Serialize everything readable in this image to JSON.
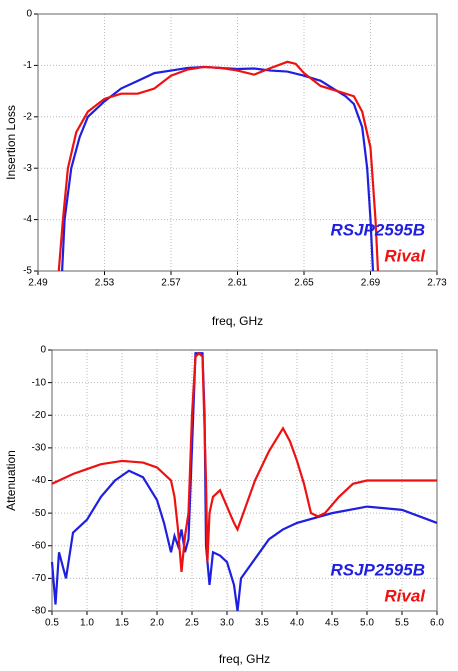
{
  "chart_data": [
    {
      "type": "line",
      "xlabel": "freq, GHz",
      "ylabel": "Insertion Loss",
      "xlim": [
        2.49,
        2.73
      ],
      "xticks": [
        2.49,
        2.53,
        2.57,
        2.61,
        2.65,
        2.69,
        2.73
      ],
      "ylim": [
        -5,
        0
      ],
      "yticks": [
        -5,
        -4,
        -3,
        -2,
        -1,
        0
      ],
      "grid": true,
      "legend": "lower right",
      "series": [
        {
          "name": "RSJP2595B",
          "color": "#1f1fe0",
          "x": [
            2.5045,
            2.506,
            2.51,
            2.515,
            2.52,
            2.53,
            2.54,
            2.55,
            2.56,
            2.57,
            2.58,
            2.59,
            2.6,
            2.61,
            2.62,
            2.63,
            2.64,
            2.65,
            2.66,
            2.67,
            2.675,
            2.68,
            2.685,
            2.688,
            2.69,
            2.6915
          ],
          "values": [
            -5,
            -4,
            -3,
            -2.4,
            -2.0,
            -1.7,
            -1.45,
            -1.3,
            -1.15,
            -1.1,
            -1.05,
            -1.03,
            -1.05,
            -1.07,
            -1.06,
            -1.1,
            -1.12,
            -1.2,
            -1.3,
            -1.5,
            -1.6,
            -1.75,
            -2.2,
            -3,
            -4,
            -5
          ]
        },
        {
          "name": "Rival",
          "color": "#ee1111",
          "x": [
            2.5025,
            2.505,
            2.508,
            2.513,
            2.52,
            2.53,
            2.54,
            2.55,
            2.56,
            2.57,
            2.58,
            2.59,
            2.6,
            2.61,
            2.62,
            2.63,
            2.64,
            2.645,
            2.65,
            2.66,
            2.67,
            2.68,
            2.685,
            2.69,
            2.693,
            2.6945
          ],
          "values": [
            -5,
            -4,
            -3,
            -2.3,
            -1.9,
            -1.65,
            -1.55,
            -1.55,
            -1.45,
            -1.2,
            -1.08,
            -1.03,
            -1.05,
            -1.1,
            -1.18,
            -1.05,
            -0.93,
            -0.97,
            -1.15,
            -1.4,
            -1.5,
            -1.6,
            -1.9,
            -2.6,
            -4,
            -5
          ]
        }
      ]
    },
    {
      "type": "line",
      "xlabel": "freq, GHz",
      "ylabel": "Attenuation",
      "xlim": [
        0.5,
        6.0
      ],
      "xticks": [
        0.5,
        {
          "value": 1,
          "label": "1.0"
        },
        1.5,
        {
          "value": 2,
          "label": "2.0"
        },
        2.5,
        {
          "value": 3,
          "label": "3.0"
        },
        3.5,
        {
          "value": 4,
          "label": "4.0"
        },
        4.5,
        {
          "value": 5,
          "label": "5.0"
        },
        5.5,
        {
          "value": 6,
          "label": "6.0"
        }
      ],
      "ylim": [
        -80,
        0
      ],
      "yticks": [
        -80,
        -70,
        -60,
        -50,
        -40,
        -30,
        -20,
        -10,
        0
      ],
      "grid": true,
      "legend": "lower right",
      "series": [
        {
          "name": "RSJP2595B",
          "color": "#1f1fe0",
          "x": [
            0.5,
            0.55,
            0.6,
            0.7,
            0.8,
            1.0,
            1.2,
            1.4,
            1.6,
            1.8,
            2.0,
            2.1,
            2.2,
            2.25,
            2.3,
            2.35,
            2.4,
            2.45,
            2.5,
            2.55,
            2.65,
            2.68,
            2.7,
            2.75,
            2.8,
            2.9,
            3.0,
            3.1,
            3.15,
            3.2,
            3.4,
            3.6,
            3.8,
            4.0,
            4.5,
            5.0,
            5.5,
            6.0
          ],
          "values": [
            -65,
            -78,
            -62,
            -70,
            -56,
            -52,
            -45,
            -40,
            -37,
            -39,
            -46,
            -53,
            -62,
            -57,
            -60,
            -55,
            -62,
            -58,
            -30,
            -1,
            -1,
            -20,
            -60,
            -72,
            -62,
            -63,
            -65,
            -72,
            -80,
            -70,
            -64,
            -58,
            -55,
            -53,
            -50,
            -48,
            -49,
            -53
          ]
        },
        {
          "name": "Rival",
          "color": "#ee1111",
          "x": [
            0.5,
            0.8,
            1.0,
            1.2,
            1.5,
            1.8,
            2.0,
            2.1,
            2.2,
            2.25,
            2.3,
            2.35,
            2.4,
            2.45,
            2.5,
            2.55,
            2.6,
            2.65,
            2.7,
            2.72,
            2.75,
            2.8,
            2.9,
            3.0,
            3.1,
            3.15,
            3.2,
            3.4,
            3.6,
            3.8,
            3.9,
            4.0,
            4.1,
            4.2,
            4.3,
            4.4,
            4.6,
            4.8,
            5.0,
            6.0
          ],
          "values": [
            -41,
            -38,
            -36.5,
            -35,
            -34,
            -34.5,
            -36,
            -38,
            -40,
            -45,
            -55,
            -68,
            -57,
            -50,
            -20,
            -2,
            -1,
            -2,
            -40,
            -65,
            -50,
            -45,
            -43,
            -48,
            -53,
            -55,
            -52,
            -40,
            -31,
            -24,
            -28,
            -34,
            -41,
            -50,
            -51,
            -50,
            -45,
            -41,
            -40,
            -40
          ]
        }
      ]
    }
  ]
}
